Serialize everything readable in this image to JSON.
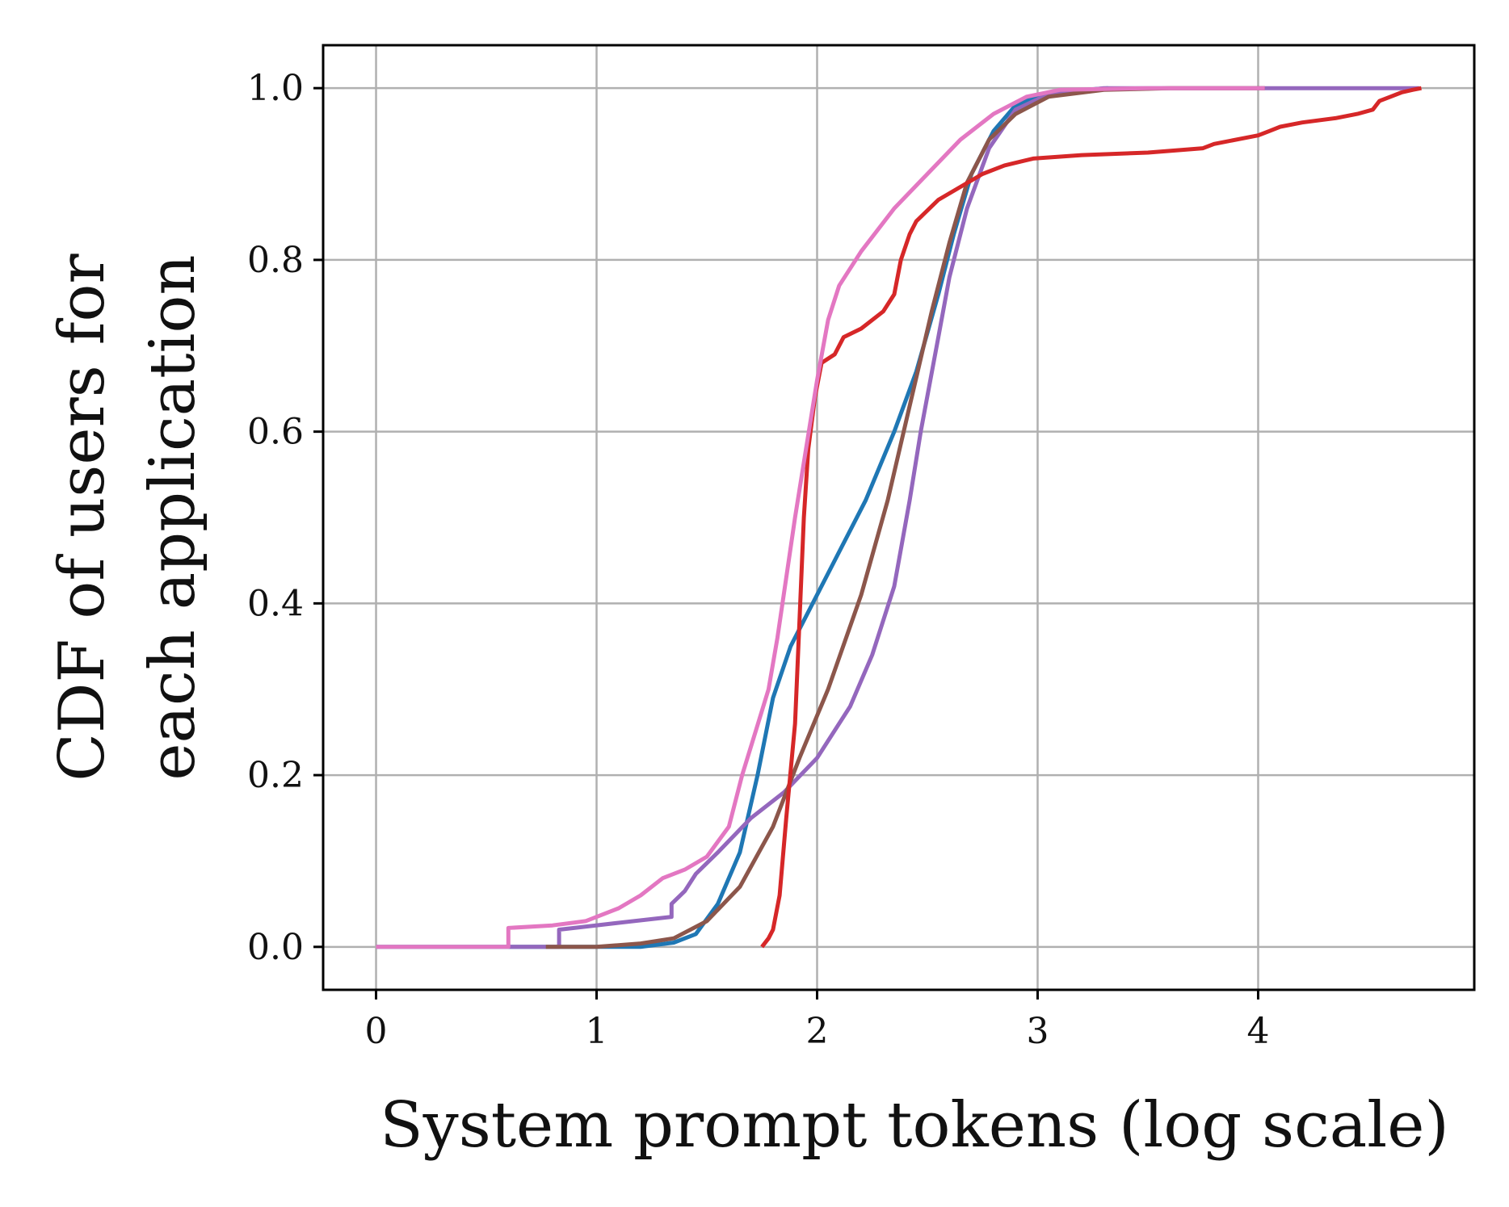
{
  "chart_data": {
    "type": "line",
    "title": "",
    "xlabel": "System prompt tokens (log scale)",
    "ylabel_lines": [
      "CDF of users for",
      "each application"
    ],
    "xlim": [
      -0.24,
      4.98
    ],
    "ylim": [
      -0.05,
      1.05
    ],
    "xticks": [
      0,
      1,
      2,
      3,
      4
    ],
    "yticks": [
      0.0,
      0.2,
      0.4,
      0.6,
      0.8,
      1.0
    ],
    "xtick_labels": [
      "0",
      "1",
      "2",
      "3",
      "4"
    ],
    "ytick_labels": [
      "0.0",
      "0.2",
      "0.4",
      "0.6",
      "0.8",
      "1.0"
    ],
    "grid": true,
    "legend": "none",
    "series": [
      {
        "color": "#1f77b4",
        "points": [
          [
            0.0,
            0.0
          ],
          [
            1.2,
            0.0
          ],
          [
            1.35,
            0.005
          ],
          [
            1.45,
            0.015
          ],
          [
            1.55,
            0.05
          ],
          [
            1.65,
            0.11
          ],
          [
            1.73,
            0.2
          ],
          [
            1.8,
            0.29
          ],
          [
            1.88,
            0.35
          ],
          [
            1.98,
            0.4
          ],
          [
            2.1,
            0.46
          ],
          [
            2.22,
            0.52
          ],
          [
            2.35,
            0.6
          ],
          [
            2.45,
            0.67
          ],
          [
            2.55,
            0.76
          ],
          [
            2.62,
            0.83
          ],
          [
            2.7,
            0.9
          ],
          [
            2.8,
            0.95
          ],
          [
            2.9,
            0.98
          ],
          [
            3.0,
            0.99
          ],
          [
            3.15,
            0.997
          ],
          [
            3.32,
            1.0
          ]
        ]
      },
      {
        "color": "#9467bd",
        "points": [
          [
            0.6,
            0.0
          ],
          [
            0.83,
            0.0
          ],
          [
            0.83,
            0.02
          ],
          [
            1.1,
            0.028
          ],
          [
            1.34,
            0.035
          ],
          [
            1.34,
            0.05
          ],
          [
            1.4,
            0.065
          ],
          [
            1.45,
            0.085
          ],
          [
            1.55,
            0.11
          ],
          [
            1.7,
            0.15
          ],
          [
            1.85,
            0.18
          ],
          [
            2.0,
            0.22
          ],
          [
            2.15,
            0.28
          ],
          [
            2.25,
            0.34
          ],
          [
            2.35,
            0.42
          ],
          [
            2.42,
            0.52
          ],
          [
            2.47,
            0.6
          ],
          [
            2.55,
            0.71
          ],
          [
            2.6,
            0.78
          ],
          [
            2.68,
            0.86
          ],
          [
            2.78,
            0.93
          ],
          [
            2.9,
            0.975
          ],
          [
            3.05,
            0.993
          ],
          [
            3.3,
            1.0
          ],
          [
            4.73,
            1.0
          ]
        ]
      },
      {
        "color": "#8c564b",
        "points": [
          [
            0.77,
            0.0
          ],
          [
            1.0,
            0.0
          ],
          [
            1.2,
            0.004
          ],
          [
            1.35,
            0.01
          ],
          [
            1.5,
            0.03
          ],
          [
            1.65,
            0.07
          ],
          [
            1.8,
            0.14
          ],
          [
            1.92,
            0.22
          ],
          [
            2.05,
            0.3
          ],
          [
            2.2,
            0.41
          ],
          [
            2.32,
            0.52
          ],
          [
            2.42,
            0.63
          ],
          [
            2.52,
            0.74
          ],
          [
            2.6,
            0.82
          ],
          [
            2.68,
            0.89
          ],
          [
            2.78,
            0.94
          ],
          [
            2.9,
            0.97
          ],
          [
            3.05,
            0.99
          ],
          [
            3.3,
            0.998
          ],
          [
            3.6,
            1.0
          ],
          [
            4.03,
            1.0
          ]
        ]
      },
      {
        "color": "#d62728",
        "points": [
          [
            1.75,
            0.0
          ],
          [
            1.78,
            0.01
          ],
          [
            1.8,
            0.02
          ],
          [
            1.83,
            0.06
          ],
          [
            1.86,
            0.15
          ],
          [
            1.9,
            0.26
          ],
          [
            1.92,
            0.38
          ],
          [
            1.94,
            0.5
          ],
          [
            1.96,
            0.58
          ],
          [
            1.99,
            0.64
          ],
          [
            2.02,
            0.68
          ],
          [
            2.08,
            0.69
          ],
          [
            2.12,
            0.71
          ],
          [
            2.2,
            0.72
          ],
          [
            2.3,
            0.74
          ],
          [
            2.35,
            0.76
          ],
          [
            2.38,
            0.8
          ],
          [
            2.42,
            0.83
          ],
          [
            2.45,
            0.845
          ],
          [
            2.55,
            0.87
          ],
          [
            2.65,
            0.885
          ],
          [
            2.75,
            0.9
          ],
          [
            2.85,
            0.91
          ],
          [
            2.98,
            0.918
          ],
          [
            3.2,
            0.922
          ],
          [
            3.5,
            0.925
          ],
          [
            3.75,
            0.93
          ],
          [
            3.8,
            0.935
          ],
          [
            4.0,
            0.945
          ],
          [
            4.05,
            0.95
          ],
          [
            4.1,
            0.955
          ],
          [
            4.2,
            0.96
          ],
          [
            4.35,
            0.965
          ],
          [
            4.45,
            0.97
          ],
          [
            4.52,
            0.975
          ],
          [
            4.55,
            0.985
          ],
          [
            4.6,
            0.99
          ],
          [
            4.65,
            0.995
          ],
          [
            4.7,
            0.998
          ],
          [
            4.74,
            1.0
          ]
        ]
      },
      {
        "color": "#e377c2",
        "points": [
          [
            0.0,
            0.0
          ],
          [
            0.6,
            0.0
          ],
          [
            0.6,
            0.022
          ],
          [
            0.8,
            0.025
          ],
          [
            0.95,
            0.03
          ],
          [
            1.1,
            0.045
          ],
          [
            1.2,
            0.06
          ],
          [
            1.3,
            0.08
          ],
          [
            1.4,
            0.09
          ],
          [
            1.5,
            0.105
          ],
          [
            1.6,
            0.14
          ],
          [
            1.66,
            0.2
          ],
          [
            1.72,
            0.25
          ],
          [
            1.78,
            0.3
          ],
          [
            1.82,
            0.36
          ],
          [
            1.86,
            0.43
          ],
          [
            1.9,
            0.5
          ],
          [
            1.95,
            0.58
          ],
          [
            2.0,
            0.66
          ],
          [
            2.05,
            0.73
          ],
          [
            2.1,
            0.77
          ],
          [
            2.2,
            0.81
          ],
          [
            2.35,
            0.86
          ],
          [
            2.5,
            0.9
          ],
          [
            2.65,
            0.94
          ],
          [
            2.8,
            0.97
          ],
          [
            2.95,
            0.99
          ],
          [
            3.1,
            0.998
          ],
          [
            3.5,
            1.0
          ],
          [
            4.03,
            1.0
          ]
        ]
      }
    ]
  }
}
